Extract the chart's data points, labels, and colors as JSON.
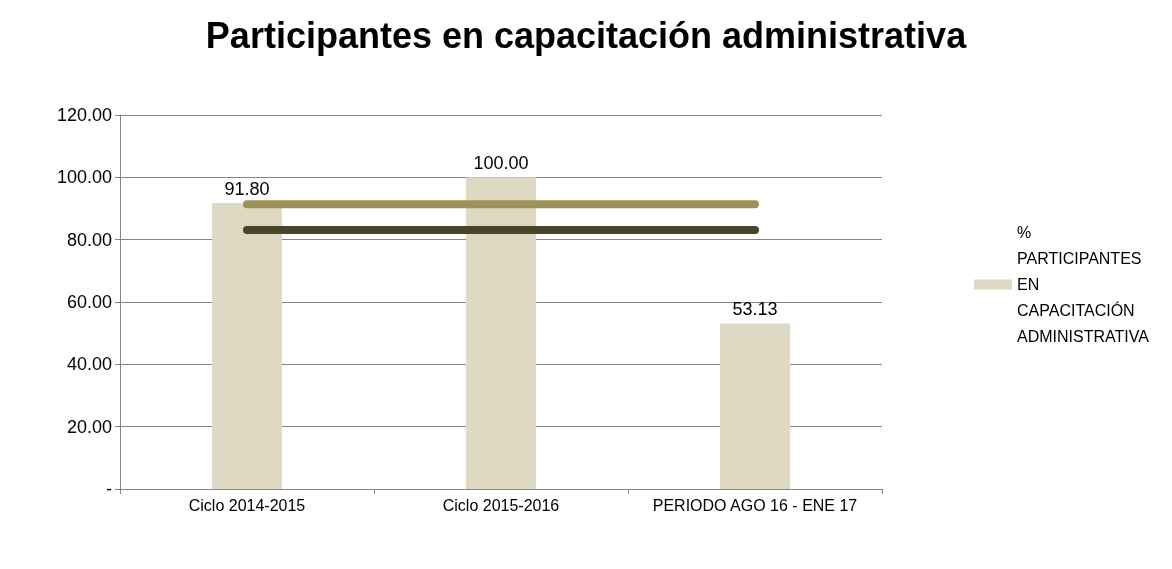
{
  "chart_data": {
    "type": "bar",
    "title": "Participantes en capacitación administrativa",
    "categories": [
      "Ciclo 2014-2015",
      "Ciclo 2015-2016",
      "PERIODO AGO 16 - ENE 17"
    ],
    "series": [
      {
        "name": "% PARTICIPANTES EN CAPACITACIÓN ADMINISTRATIVA",
        "color": "#ddd9c3",
        "values": [
          91.8,
          100,
          53.13
        ],
        "value_labels": [
          "91.80",
          "100.00",
          "53.13"
        ]
      },
      {
        "type": "line",
        "color": "#9c9256",
        "values": [
          91.4,
          91.4,
          91.4
        ]
      },
      {
        "type": "line",
        "color": "#4a452a",
        "values": [
          83.1,
          83.1,
          83.1
        ]
      }
    ],
    "ylim": [
      0,
      120
    ],
    "yticks": [
      {
        "value": 0,
        "label": "-"
      },
      {
        "value": 20,
        "label": "20.00"
      },
      {
        "value": 40,
        "label": "40.00"
      },
      {
        "value": 60,
        "label": "60.00"
      },
      {
        "value": 80,
        "label": "80.00"
      },
      {
        "value": 100,
        "label": "100.00"
      },
      {
        "value": 120,
        "label": "120.00"
      }
    ],
    "grid": "y",
    "legend": "right"
  }
}
